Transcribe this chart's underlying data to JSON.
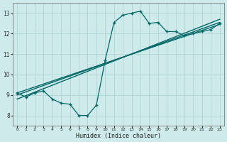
{
  "xlabel": "Humidex (Indice chaleur)",
  "ylabel": "",
  "xlim": [
    -0.5,
    23.5
  ],
  "ylim": [
    7.5,
    13.5
  ],
  "xticks": [
    0,
    1,
    2,
    3,
    4,
    5,
    6,
    7,
    8,
    9,
    10,
    11,
    12,
    13,
    14,
    15,
    16,
    17,
    18,
    19,
    20,
    21,
    22,
    23
  ],
  "yticks": [
    8,
    9,
    10,
    11,
    12,
    13
  ],
  "bg_color": "#ceeaea",
  "grid_color": "#b0d4d4",
  "line_color": "#006666",
  "main_x": [
    0,
    1,
    2,
    3,
    4,
    5,
    6,
    7,
    8,
    9,
    10,
    11,
    12,
    13,
    14,
    15,
    16,
    17,
    18,
    19,
    20,
    21,
    22,
    23
  ],
  "main_y": [
    9.1,
    8.9,
    9.1,
    9.2,
    8.8,
    8.6,
    8.55,
    8.0,
    8.0,
    8.5,
    10.7,
    12.55,
    12.9,
    13.0,
    13.1,
    12.5,
    12.55,
    12.1,
    12.1,
    11.9,
    12.0,
    12.1,
    12.2,
    12.5
  ],
  "line1_x": [
    0,
    23
  ],
  "line1_y": [
    9.0,
    12.55
  ],
  "line2_x": [
    0,
    23
  ],
  "line2_y": [
    9.1,
    12.45
  ],
  "line3_x": [
    0,
    23
  ],
  "line3_y": [
    8.8,
    12.7
  ]
}
